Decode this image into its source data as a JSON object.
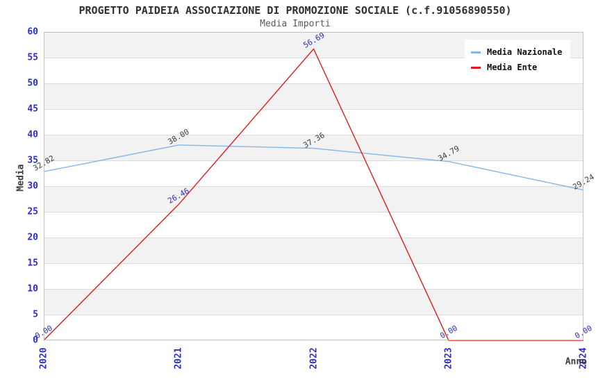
{
  "title": "PROGETTO PAIDEIA ASSOCIAZIONE DI PROMOZIONE SOCIALE (c.f.91056890550)",
  "subtitle": "Media Importi",
  "legend": {
    "items": [
      {
        "label": "Media Nazionale",
        "color": "#84b7e8"
      },
      {
        "label": "Media Ente",
        "color": "#e01b1b"
      }
    ]
  },
  "colors": {
    "tick_blue": "#2d2dc9",
    "band_gray": "#f2f2f2",
    "gridline": "#dcdcdc",
    "plot_border": "#c2c2c2",
    "title_text": "#303030",
    "subtitle_text": "#5a5a5a",
    "axis_title_text": "#3d3d3d",
    "nazionale_line": "#84b7e8",
    "ente_line": "#e01b1b"
  },
  "chart_data": {
    "type": "line",
    "title": "PROGETTO PAIDEIA ASSOCIAZIONE DI PROMOZIONE SOCIALE (c.f.91056890550)",
    "subtitle": "Media Importi",
    "x": [
      "2020",
      "2021",
      "2022",
      "2023",
      "2024"
    ],
    "series": [
      {
        "name": "Media Nazionale",
        "values": [
          32.82,
          38.0,
          37.36,
          34.79,
          29.24
        ],
        "point_labels": [
          "32.82",
          "38.00",
          "37.36",
          "34.79",
          "29.24"
        ],
        "color": "#84b7e8",
        "label_color": "#3d3d3d"
      },
      {
        "name": "Media Ente",
        "values": [
          0.0,
          26.46,
          56.69,
          0.0,
          0.0
        ],
        "point_labels": [
          "0.00",
          "26.46",
          "56.69",
          "0.00",
          "0.00"
        ],
        "color": "#e01b1b",
        "label_color": "#2d2dc9"
      }
    ],
    "xlabel": "Anno",
    "ylabel": "Media",
    "ylim": [
      0,
      60
    ],
    "ytick_step": 5,
    "yticks": [
      0,
      5,
      10,
      15,
      20,
      25,
      30,
      35,
      40,
      45,
      50,
      55,
      60
    ],
    "grid": true,
    "banded_background": true,
    "legend_position": "top-right"
  }
}
